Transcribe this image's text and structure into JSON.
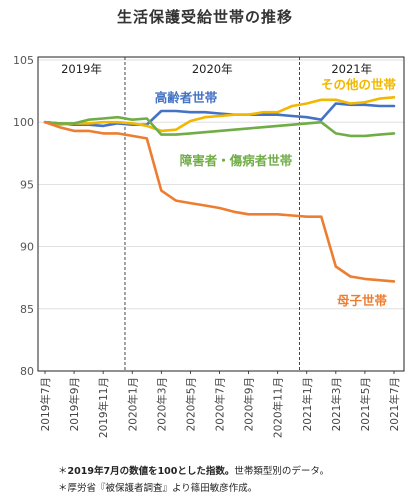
{
  "chart_data": {
    "type": "line",
    "title": "生活保護受給世帯の推移",
    "x": [
      "2019年7月",
      "2019年8月",
      "2019年9月",
      "2019年10月",
      "2019年11月",
      "2019年12月",
      "2020年1月",
      "2020年2月",
      "2020年3月",
      "2020年4月",
      "2020年5月",
      "2020年6月",
      "2020年7月",
      "2020年8月",
      "2020年9月",
      "2020年10月",
      "2020年11月",
      "2020年12月",
      "2021年1月",
      "2021年2月",
      "2021年3月",
      "2021年4月",
      "2021年5月",
      "2021年6月",
      "2021年7月"
    ],
    "x_tick_labels": [
      "2019年7月",
      "2019年9月",
      "2019年11月",
      "2020年1月",
      "2020年3月",
      "2020年5月",
      "2020年7月",
      "2020年9月",
      "2020年11月",
      "2021年1月",
      "2021年3月",
      "2021年5月",
      "2021年7月"
    ],
    "ylim": [
      80,
      105
    ],
    "yticks": [
      80,
      85,
      90,
      95,
      100,
      105
    ],
    "period_labels": [
      "2019年",
      "2020年",
      "2021年"
    ],
    "series": [
      {
        "name": "高齢者世帯",
        "color": "#4472c4",
        "values": [
          100.0,
          99.9,
          99.8,
          99.8,
          99.7,
          99.9,
          99.8,
          99.8,
          100.9,
          100.9,
          100.8,
          100.8,
          100.7,
          100.6,
          100.6,
          100.6,
          100.6,
          100.5,
          100.4,
          100.2,
          101.5,
          101.4,
          101.4,
          101.3,
          101.3
        ]
      },
      {
        "name": "その他の世帯",
        "color": "#f2b800",
        "values": [
          100.0,
          99.8,
          99.9,
          99.9,
          100.0,
          100.0,
          99.9,
          99.7,
          99.3,
          99.4,
          100.1,
          100.4,
          100.5,
          100.6,
          100.6,
          100.8,
          100.8,
          101.3,
          101.5,
          101.8,
          101.8,
          101.5,
          101.6,
          101.9,
          102.0
        ]
      },
      {
        "name": "障害者・傷病者世帯",
        "color": "#70ad47",
        "values": [
          100.0,
          99.9,
          99.9,
          100.2,
          100.3,
          100.4,
          100.2,
          100.3,
          99.0,
          99.0,
          99.1,
          99.2,
          99.3,
          99.4,
          99.5,
          99.6,
          99.7,
          99.8,
          99.9,
          100.0,
          99.1,
          98.9,
          98.9,
          99.0,
          99.1
        ]
      },
      {
        "name": "母子世帯",
        "color": "#ed7d31",
        "values": [
          100.0,
          99.6,
          99.3,
          99.3,
          99.1,
          99.1,
          98.9,
          98.7,
          94.5,
          93.7,
          93.5,
          93.3,
          93.1,
          92.8,
          92.6,
          92.6,
          92.6,
          92.5,
          92.4,
          92.4,
          88.4,
          87.6,
          87.4,
          87.3,
          87.2
        ]
      }
    ]
  },
  "notes": {
    "note1_marker": "＊",
    "note1_bold": "2019年7月の数値を100とした指数。",
    "note1_rest": "世帯類型別のデータ。",
    "note2": "＊厚労省『被保護者調査』より篠田敏彦作成。"
  }
}
